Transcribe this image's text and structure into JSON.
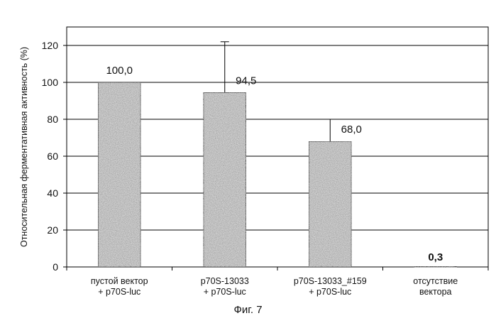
{
  "chart_data": {
    "type": "bar",
    "title": "",
    "xlabel": "",
    "ylabel": "Относительная ферментативная активность (%)",
    "ylim": [
      0,
      130
    ],
    "yticks": [
      0,
      20,
      40,
      60,
      80,
      100,
      120
    ],
    "grid": true,
    "categories": [
      [
        "пустой вектор",
        "+ p70S-luc"
      ],
      [
        "p70S-13033",
        "+ p70S-luc"
      ],
      [
        "p70S-13033_#159",
        "+ p70S-luc"
      ],
      [
        "отсутствие",
        "вектора"
      ]
    ],
    "values": [
      100.0,
      94.5,
      68.0,
      0.3
    ],
    "value_labels": [
      "100,0",
      "94,5",
      "68,0",
      "0,3"
    ],
    "error_bar_tops": [
      null,
      122,
      80,
      null
    ],
    "bar_color": "#d6d6d6"
  },
  "figure_caption": "Фиг. 7"
}
